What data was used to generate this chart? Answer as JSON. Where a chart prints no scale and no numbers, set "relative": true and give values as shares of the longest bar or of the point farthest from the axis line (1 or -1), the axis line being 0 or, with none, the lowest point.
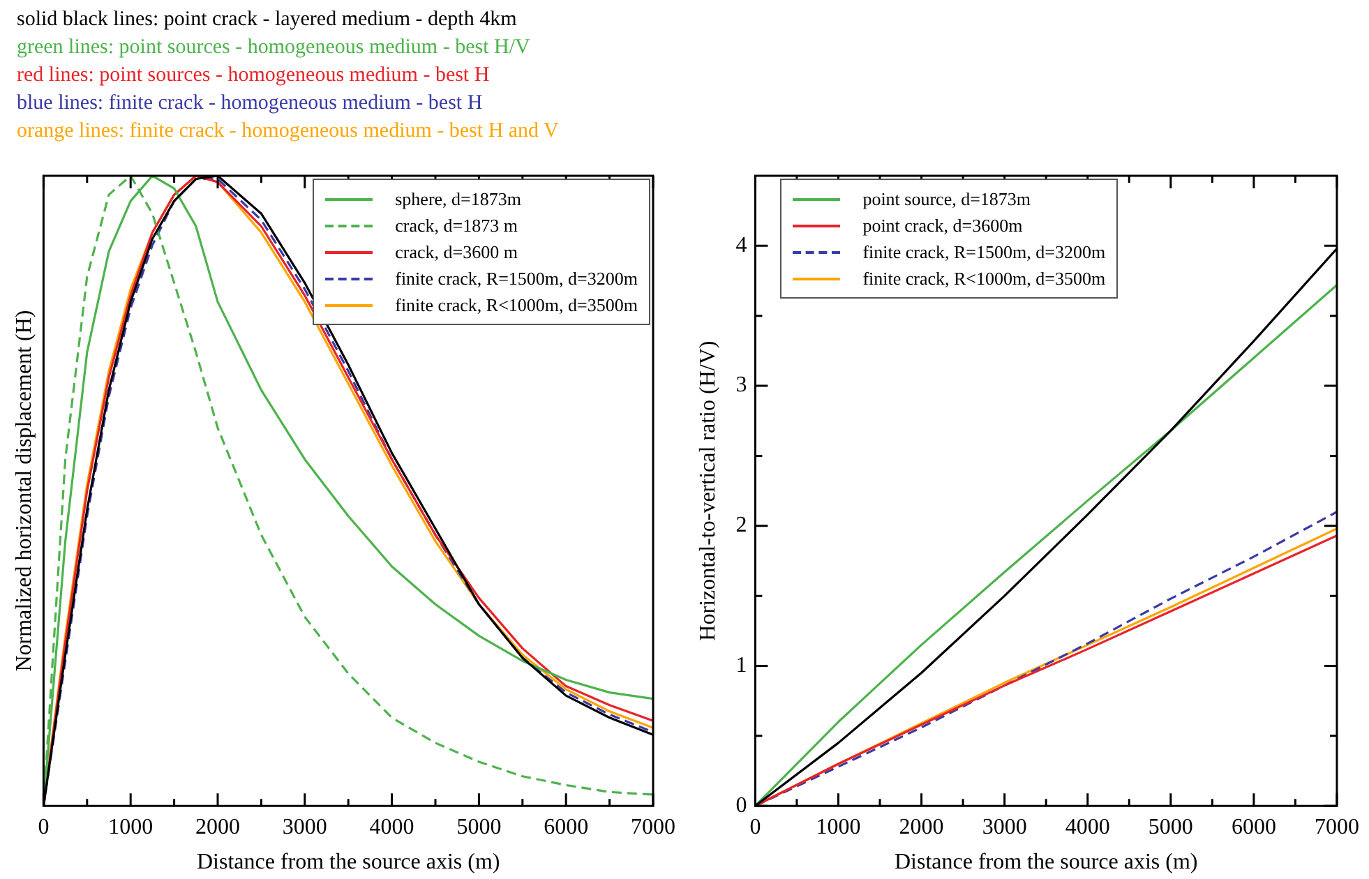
{
  "chart_data": [
    {
      "type": "line",
      "relative": true,
      "xlabel": "Distance from the source axis (m)",
      "ylabel": "Normalized horizontal displacement (H)",
      "annotations": [
        "solid black lines: point crack - layered medium - depth 4km",
        "green lines: point sources - homogeneous medium - best H/V",
        "red lines: point sources - homogeneous medium - best H",
        "blue lines: finite crack - homogeneous medium - best H",
        "orange lines: finite crack - homogeneous medium - best H and V"
      ],
      "xlim": [
        0,
        7000
      ],
      "xticks": [
        0,
        {
          "value": 500,
          "label": null
        },
        1000,
        {
          "value": 1500,
          "label": null
        },
        2000,
        {
          "value": 2500,
          "label": null
        },
        3000,
        {
          "value": 3500,
          "label": null
        },
        4000,
        {
          "value": 4500,
          "label": null
        },
        5000,
        {
          "value": 5500,
          "label": null
        },
        6000,
        {
          "value": 6500,
          "label": null
        },
        7000
      ],
      "legend": "top right",
      "grid": false,
      "marker": "none",
      "x": [
        0,
        250,
        500,
        750,
        1000,
        1250,
        1500,
        1750,
        2000,
        2500,
        3000,
        3500,
        4000,
        4500,
        5000,
        5500,
        6000,
        6500,
        7000
      ],
      "series": [
        {
          "color": "#000000",
          "values": [
            0,
            0.24,
            0.47,
            0.66,
            0.8,
            0.9,
            0.96,
            0.995,
            1.0,
            0.94,
            0.83,
            0.7,
            0.56,
            0.44,
            0.32,
            0.235,
            0.175,
            0.14,
            0.113
          ]
        },
        {
          "name": "sphere, d=1873m",
          "color": "#4db34d",
          "values": [
            0,
            0.42,
            0.72,
            0.88,
            0.96,
            1.0,
            0.98,
            0.92,
            0.8,
            0.66,
            0.55,
            0.46,
            0.38,
            0.32,
            0.27,
            0.23,
            0.2,
            0.18,
            0.17
          ]
        },
        {
          "name": "crack, d=1873 m",
          "color": "#4db34d",
          "line_style": "dashed",
          "values": [
            0,
            0.55,
            0.84,
            0.97,
            1.0,
            0.94,
            0.83,
            0.72,
            0.6,
            0.43,
            0.3,
            0.21,
            0.14,
            0.1,
            0.07,
            0.047,
            0.033,
            0.022,
            0.018
          ]
        },
        {
          "name": "crack, d=3600 m",
          "color": "#e8242a",
          "values": [
            0,
            0.26,
            0.5,
            0.68,
            0.81,
            0.91,
            0.97,
            1.0,
            0.99,
            0.92,
            0.81,
            0.68,
            0.55,
            0.43,
            0.33,
            0.25,
            0.19,
            0.16,
            0.135
          ]
        },
        {
          "name": "finite crack, R=1500m, d=3200m",
          "color": "#3a3aa8",
          "line_style": "dashed",
          "values": [
            0,
            0.23,
            0.46,
            0.65,
            0.79,
            0.89,
            0.96,
            0.995,
            0.995,
            0.93,
            0.82,
            0.69,
            0.55,
            0.43,
            0.32,
            0.235,
            0.18,
            0.145,
            0.117
          ]
        },
        {
          "name": "finite crack, R<1000m, d=3500m",
          "color": "#ffa500",
          "values": [
            0,
            0.27,
            0.51,
            0.69,
            0.82,
            0.91,
            0.97,
            1.0,
            0.99,
            0.91,
            0.8,
            0.67,
            0.54,
            0.42,
            0.32,
            0.24,
            0.185,
            0.15,
            0.124
          ]
        }
      ]
    },
    {
      "type": "line",
      "xlabel": "Distance from the source axis (m)",
      "ylabel": "Horizontal-to-vertical ratio (H/V)",
      "xlim": [
        0,
        7000
      ],
      "xticks": [
        0,
        {
          "value": 500,
          "label": null
        },
        1000,
        {
          "value": 1500,
          "label": null
        },
        2000,
        {
          "value": 2500,
          "label": null
        },
        3000,
        {
          "value": 3500,
          "label": null
        },
        4000,
        {
          "value": 4500,
          "label": null
        },
        5000,
        {
          "value": 5500,
          "label": null
        },
        6000,
        {
          "value": 6500,
          "label": null
        },
        7000
      ],
      "ylim": [
        0,
        4.5
      ],
      "yticks": [
        0,
        {
          "value": 0.5,
          "label": null
        },
        1,
        {
          "value": 1.5,
          "label": null
        },
        2,
        {
          "value": 2.5,
          "label": null
        },
        3,
        {
          "value": 3.5,
          "label": null
        },
        4
      ],
      "legend": "top left",
      "grid": false,
      "marker": "none",
      "x": [
        0,
        1000,
        2000,
        3000,
        4000,
        5000,
        6000,
        7000
      ],
      "series": [
        {
          "color": "#000000",
          "values": [
            0,
            0.45,
            0.95,
            1.5,
            2.08,
            2.68,
            3.32,
            3.98
          ]
        },
        {
          "name": "point source, d=1873m",
          "color": "#4db34d",
          "values": [
            0,
            0.6,
            1.15,
            1.67,
            2.18,
            2.68,
            3.2,
            3.72
          ]
        },
        {
          "name": "point crack, d=3600m",
          "color": "#e8242a",
          "values": [
            0,
            0.3,
            0.58,
            0.86,
            1.12,
            1.39,
            1.66,
            1.93
          ]
        },
        {
          "name": "finite crack, R=1500m, d=3200m",
          "color": "#3a3aa8",
          "line_style": "dashed",
          "values": [
            0,
            0.28,
            0.56,
            0.86,
            1.16,
            1.48,
            1.78,
            2.1
          ]
        },
        {
          "name": "finite crack, R<1000m, d=3500m",
          "color": "#ffa500",
          "values": [
            0,
            0.3,
            0.59,
            0.88,
            1.15,
            1.42,
            1.7,
            1.98
          ]
        }
      ]
    }
  ]
}
